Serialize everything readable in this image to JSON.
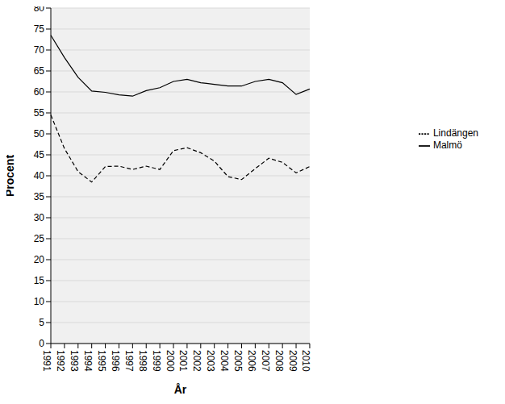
{
  "chart_data": {
    "type": "line",
    "categories": [
      "1991",
      "1992",
      "1993",
      "1994",
      "1995",
      "1996",
      "1997",
      "1998",
      "1999",
      "2000",
      "2001",
      "2002",
      "2003",
      "2004",
      "2005",
      "2006",
      "2007",
      "2008",
      "2009",
      "2010"
    ],
    "series": [
      {
        "name": "Malmö",
        "color": "#000000",
        "line_style": "solid",
        "values": [
          73.5,
          68.2,
          63.5,
          60.2,
          59.9,
          59.3,
          59.0,
          60.3,
          61.0,
          62.5,
          63.0,
          62.2,
          61.8,
          61.4,
          61.4,
          62.5,
          63.0,
          62.2,
          59.4,
          60.7
        ]
      },
      {
        "name": "Lindängen",
        "color": "#000000",
        "line_style": "dashed",
        "values": [
          54.5,
          46.5,
          41.0,
          38.5,
          42.2,
          42.3,
          41.5,
          42.3,
          41.5,
          46.0,
          46.7,
          45.5,
          43.5,
          39.8,
          39.1,
          41.7,
          44.2,
          43.2,
          40.7,
          42.2
        ]
      }
    ],
    "x_label": "År",
    "y_label": "Procent",
    "ylim": [
      0,
      80
    ],
    "yticks": [
      0,
      5,
      10,
      15,
      20,
      25,
      30,
      35,
      40,
      45,
      50,
      55,
      60,
      65,
      70,
      75,
      80
    ],
    "grid": true,
    "legend": "right"
  }
}
